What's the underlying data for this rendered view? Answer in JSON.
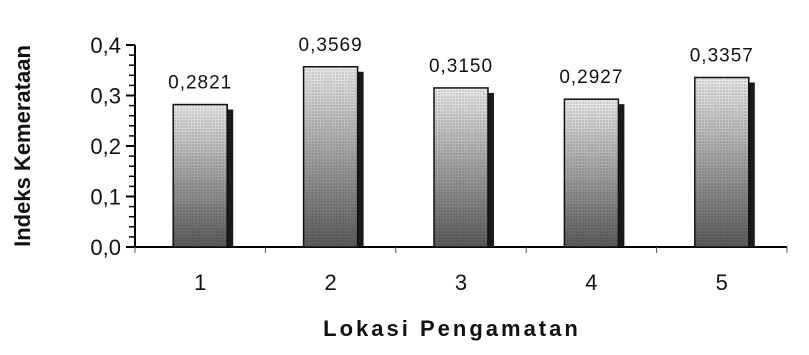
{
  "chart_data": {
    "type": "bar",
    "categories": [
      "1",
      "2",
      "3",
      "4",
      "5"
    ],
    "values": [
      0.2821,
      0.3569,
      0.315,
      0.2927,
      0.3357
    ],
    "value_labels": [
      "0,2821",
      "0,3569",
      "0,3150",
      "0,2927",
      "0,3357"
    ],
    "y_ticks": [
      0.0,
      0.1,
      0.2,
      0.3,
      0.4
    ],
    "y_tick_labels": [
      "0,0",
      "0,1",
      "0,2",
      "0,3",
      "0,4"
    ],
    "ylim": [
      0,
      0.4
    ],
    "xlabel": "Lokasi Pengamatan",
    "ylabel": "Indeks Kemerataan",
    "grid": false,
    "legend": "none",
    "bar_fill_top": "#e8e8e8",
    "bar_fill_bottom": "#5a5a5a",
    "bar_shadow": "#1a1a1a"
  }
}
